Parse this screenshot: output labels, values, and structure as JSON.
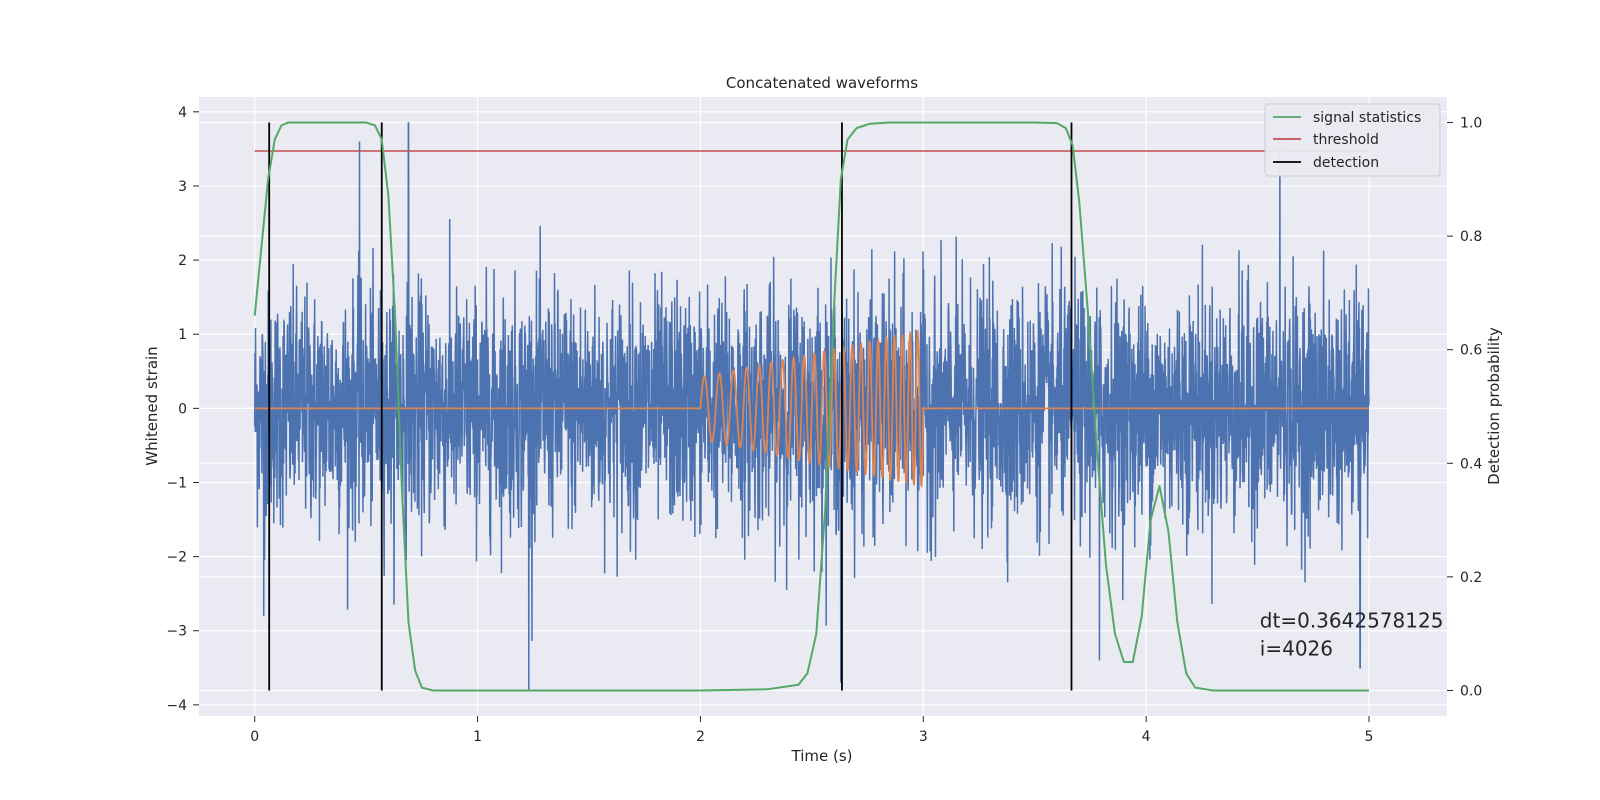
{
  "chart_data": {
    "type": "line",
    "title": "Concatenated waveforms",
    "xlabel": "Time (s)",
    "ylabel_left": "Whitened strain",
    "ylabel_right": "Detection probability",
    "xlim": [
      -0.25,
      5.35
    ],
    "ylim_left": [
      -4.15,
      4.2
    ],
    "ylim_right": [
      -0.045,
      1.045
    ],
    "x_ticks": [
      0,
      1,
      2,
      3,
      4,
      5
    ],
    "y_ticks_left": [
      -4,
      -3,
      -2,
      -1,
      0,
      1,
      2,
      3,
      4
    ],
    "y_ticks_right": [
      0.0,
      0.2,
      0.4,
      0.6,
      0.8,
      1.0
    ],
    "y_tick_labels_left": [
      "−4",
      "−3",
      "−2",
      "−1",
      "0",
      "1",
      "2",
      "3",
      "4"
    ],
    "y_tick_labels_right": [
      "0.0",
      "0.2",
      "0.4",
      "0.6",
      "0.8",
      "1.0"
    ],
    "grid": true,
    "legend_position": "top-right",
    "legend": [
      {
        "name": "signal statistics",
        "color": "#55a868"
      },
      {
        "name": "threshold",
        "color": "#c44e52"
      },
      {
        "name": "detection",
        "color": "#000000"
      }
    ],
    "colors": {
      "noise": "#4c72b0",
      "waveform": "#dd8452",
      "signal_statistics": "#55a868",
      "threshold": "#c44e52",
      "detection": "#000000",
      "plot_bg": "#eaeaf2",
      "grid": "#ffffff"
    },
    "noise": {
      "x_range": [
        0,
        5
      ],
      "band_std": 0.78,
      "max_abs": 3.85,
      "spikes": [
        {
          "x": 0.47,
          "y": 3.6
        },
        {
          "x": 0.69,
          "y": 3.85
        },
        {
          "x": 4.6,
          "y": 3.75
        },
        {
          "x": 1.23,
          "y": -3.8
        },
        {
          "x": 3.79,
          "y": -3.4
        },
        {
          "x": 4.96,
          "y": -3.5
        },
        {
          "x": 0.04,
          "y": -2.8
        },
        {
          "x": 2.63,
          "y": -3.7
        }
      ]
    },
    "waveform": {
      "flat_range": [
        0,
        5
      ],
      "chirp_start": 2.0,
      "chirp_end": 3.0,
      "amp_start": 0.42,
      "amp_end": 1.05,
      "freq_start": 14,
      "freq_end": 30
    },
    "signal_statistics": {
      "x": [
        0.0,
        0.03,
        0.06,
        0.09,
        0.12,
        0.15,
        0.2,
        0.3,
        0.4,
        0.5,
        0.54,
        0.57,
        0.6,
        0.63,
        0.66,
        0.69,
        0.72,
        0.75,
        0.8,
        1.0,
        1.5,
        2.0,
        2.3,
        2.44,
        2.48,
        2.52,
        2.56,
        2.6,
        2.63,
        2.66,
        2.7,
        2.76,
        2.85,
        3.0,
        3.5,
        3.6,
        3.64,
        3.67,
        3.7,
        3.74,
        3.78,
        3.82,
        3.86,
        3.9,
        3.94,
        3.98,
        4.02,
        4.06,
        4.1,
        4.14,
        4.18,
        4.22,
        4.3,
        4.6,
        5.0
      ],
      "y": [
        0.66,
        0.78,
        0.9,
        0.97,
        0.995,
        1.0,
        1.0,
        1.0,
        1.0,
        1.0,
        0.995,
        0.97,
        0.87,
        0.66,
        0.36,
        0.12,
        0.035,
        0.005,
        0.0,
        0.0,
        0.0,
        0.0,
        0.002,
        0.01,
        0.03,
        0.1,
        0.32,
        0.68,
        0.9,
        0.97,
        0.99,
        0.998,
        1.0,
        1.0,
        1.0,
        0.999,
        0.99,
        0.96,
        0.86,
        0.66,
        0.42,
        0.22,
        0.1,
        0.05,
        0.05,
        0.13,
        0.3,
        0.36,
        0.28,
        0.12,
        0.03,
        0.005,
        0.0,
        0.0,
        0.0
      ]
    },
    "threshold": {
      "value": 0.95,
      "x_range": [
        0,
        5
      ]
    },
    "detections": [
      0.065,
      0.57,
      2.635,
      3.665
    ],
    "annotation": {
      "lines": [
        "dt=0.3642578125",
        " i=4026"
      ],
      "x": 4.51,
      "y": 0.1
    }
  }
}
